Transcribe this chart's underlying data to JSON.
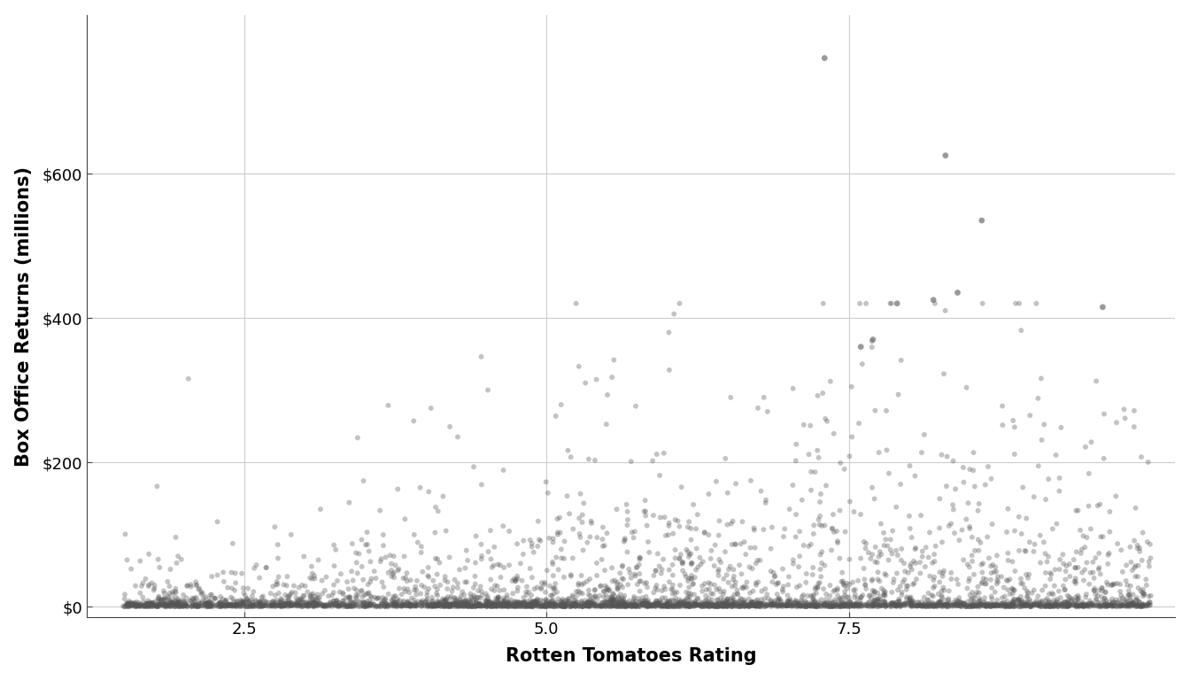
{
  "title": "",
  "xlabel": "Rotten Tomatoes Rating",
  "ylabel": "Box Office Returns (millions)",
  "xlim": [
    1.2,
    10.2
  ],
  "ylim": [
    -15,
    820
  ],
  "xticks": [
    2.5,
    5.0,
    7.5
  ],
  "yticks": [
    0,
    200,
    400,
    600
  ],
  "ytick_labels": [
    "$0",
    "$200",
    "$400",
    "$600"
  ],
  "point_color": "#555555",
  "point_alpha": 0.35,
  "point_size": 18,
  "bg_color": "#ffffff",
  "grid_color": "#cccccc",
  "n_points": 4500,
  "seed": 42,
  "outlier_x": [
    7.3,
    8.3,
    8.6,
    8.4,
    8.2,
    7.9,
    9.6,
    7.7,
    7.6
  ],
  "outlier_y": [
    760,
    625,
    535,
    435,
    425,
    420,
    415,
    370,
    360
  ]
}
